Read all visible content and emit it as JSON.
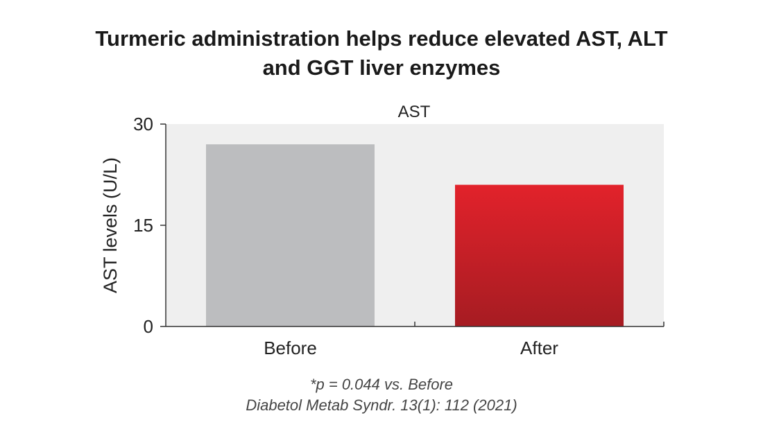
{
  "title_line1": "Turmeric administration helps reduce elevated AST, ALT",
  "title_line2": "and GGT liver enzymes",
  "chart_data": {
    "type": "bar",
    "subtitle": "AST",
    "categories": [
      "Before",
      "After"
    ],
    "values": [
      27,
      21
    ],
    "ylabel": "AST levels (U/L)",
    "ylim": [
      0,
      30
    ],
    "yticks": [
      "0",
      "15",
      "30"
    ],
    "bar_colors": [
      "#bcbdbf",
      "#d42027"
    ],
    "plot_background": "#efefef",
    "grid": false
  },
  "footnote": {
    "p_value": "*p = 0.044 vs. Before",
    "reference": "Diabetol Metab Syndr. 13(1): 112 (2021)"
  }
}
